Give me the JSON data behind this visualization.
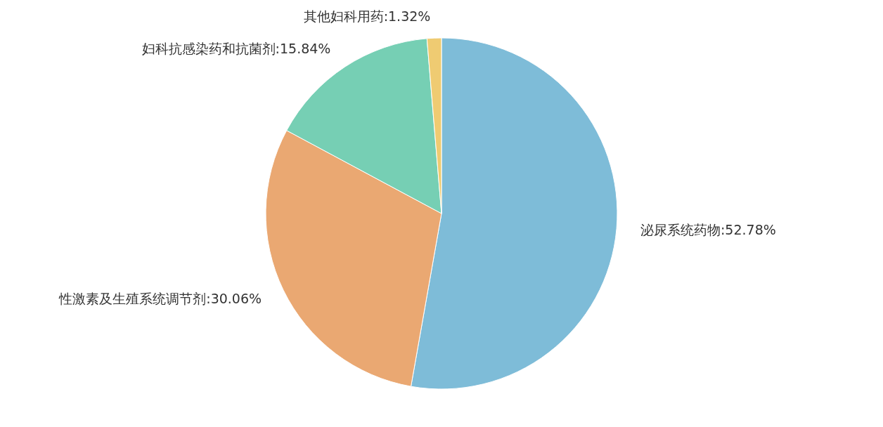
{
  "chart_data": {
    "type": "pie",
    "categories": [
      "泌尿系统药物",
      "性激素及生殖系统调节剂",
      "妇科抗感染药和抗菌剂",
      "其他妇科用药"
    ],
    "values": [
      52.78,
      30.06,
      15.84,
      1.32
    ],
    "value_labels": [
      "52.78%",
      "30.06%",
      "15.84%",
      "1.32%"
    ],
    "colors": [
      "#7ebcd8",
      "#eaa872",
      "#76cfb4",
      "#efcb72"
    ],
    "legend": false
  }
}
